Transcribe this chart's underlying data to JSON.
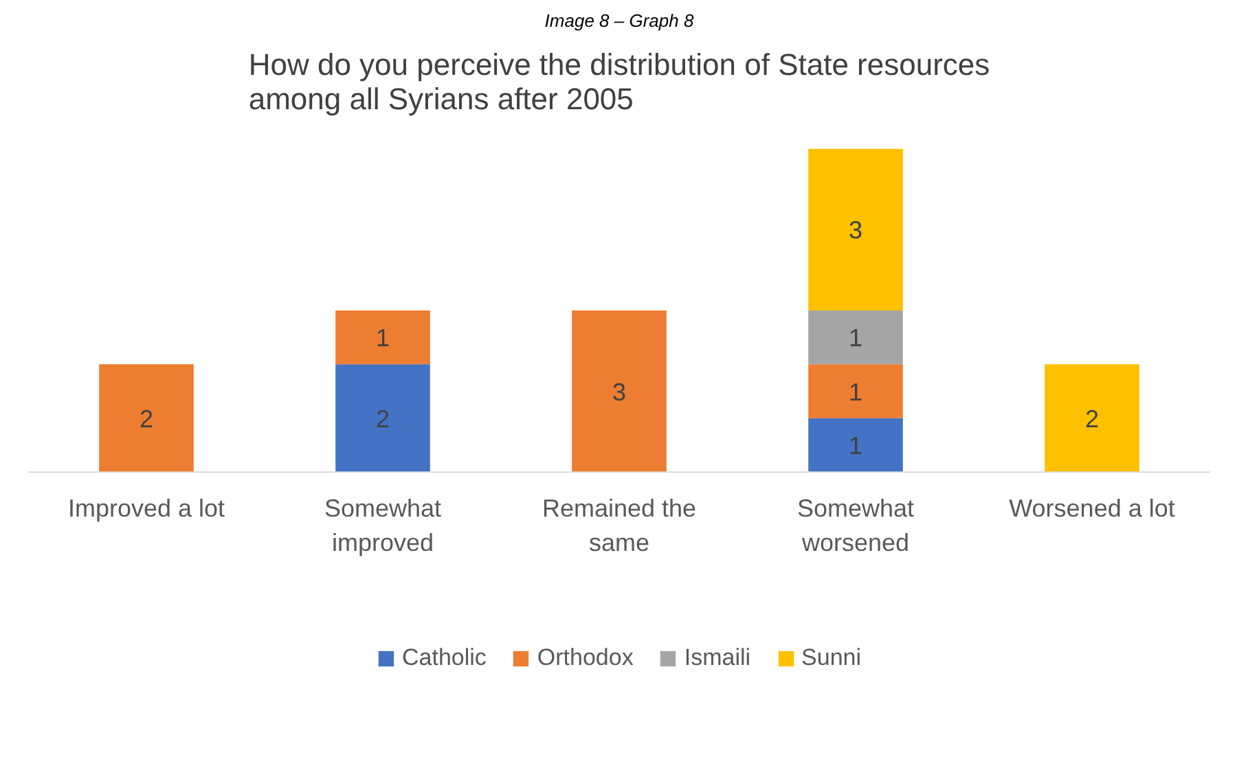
{
  "chart_data": {
    "type": "bar",
    "stacked": true,
    "title": "How do you perceive the distribution of State resources\namong all Syrians after 2005",
    "annotations": [
      "Image 8 – Graph 8"
    ],
    "categories": [
      "Improved a lot",
      "Somewhat improved",
      "Remained the same",
      "Somewhat worsened",
      "Worsened a lot"
    ],
    "series": [
      {
        "name": "Catholic",
        "color": "#4472c4",
        "values": [
          null,
          2,
          null,
          1,
          null
        ]
      },
      {
        "name": "Orthodox",
        "color": "#ed7d31",
        "values": [
          2,
          1,
          3,
          1,
          null
        ]
      },
      {
        "name": "Ismaili",
        "color": "#a5a5a5",
        "values": [
          null,
          null,
          null,
          1,
          null
        ]
      },
      {
        "name": "Sunni",
        "color": "#ffc000",
        "values": [
          null,
          null,
          null,
          3,
          2
        ]
      }
    ],
    "data_labels": true,
    "grid": false,
    "legend": "bottom"
  }
}
